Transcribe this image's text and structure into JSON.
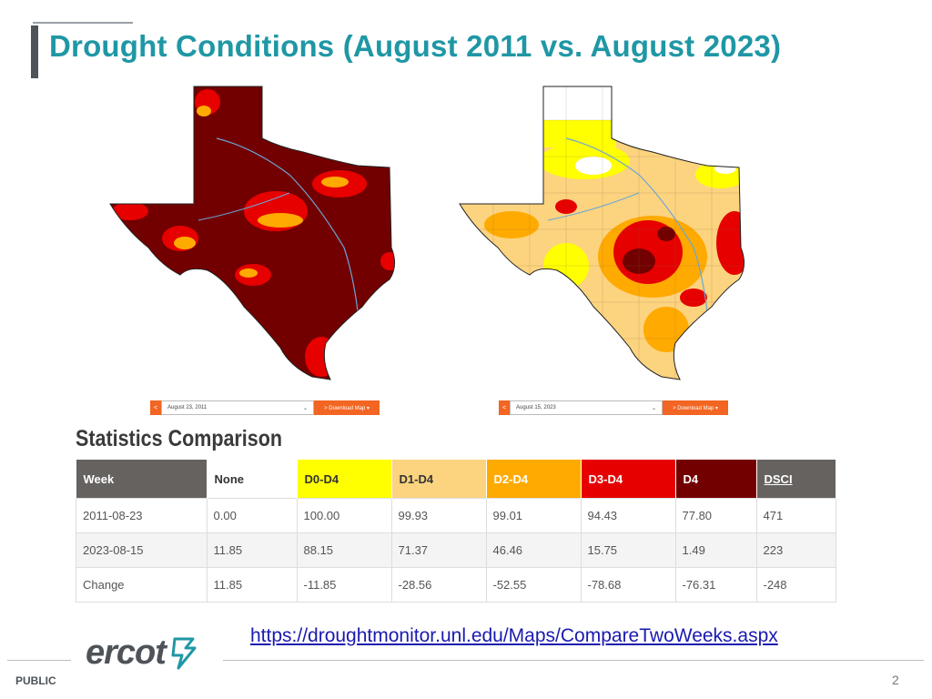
{
  "slide": {
    "title": "Drought Conditions (August 2011 vs. August 2023)",
    "link": "https://droughtmonitor.unl.edu/Maps/CompareTwoWeeks.aspx",
    "footer_label": "PUBLIC",
    "page_number": "2",
    "logo_text": "ercot"
  },
  "maps": [
    {
      "picker": {
        "prev": "<",
        "date": "August 23, 2011",
        "caret": "⌄",
        "download": "> Download Map ▾"
      }
    },
    {
      "picker": {
        "prev": "<",
        "date": "August 15, 2023",
        "caret": "⌄",
        "download": "> Download Map ▾"
      }
    }
  ],
  "colors": {
    "d0": "#ffff00",
    "d1": "#fcd37f",
    "d2": "#ffaa00",
    "d3": "#e60000",
    "d4": "#730000",
    "accent_title": "#1f97a5",
    "header_gray": "#666260"
  },
  "stats": {
    "title": "Statistics Comparison",
    "headers": [
      "Week",
      "None",
      "D0-D4",
      "D1-D4",
      "D2-D4",
      "D3-D4",
      "D4",
      "DSCI"
    ],
    "rows": [
      [
        "2011-08-23",
        "0.00",
        "100.00",
        "99.93",
        "99.01",
        "94.43",
        "77.80",
        "471"
      ],
      [
        "2023-08-15",
        "11.85",
        "88.15",
        "71.37",
        "46.46",
        "15.75",
        "1.49",
        "223"
      ],
      [
        "Change",
        "11.85",
        "-11.85",
        "-28.56",
        "-52.55",
        "-78.68",
        "-76.31",
        "-248"
      ]
    ]
  }
}
